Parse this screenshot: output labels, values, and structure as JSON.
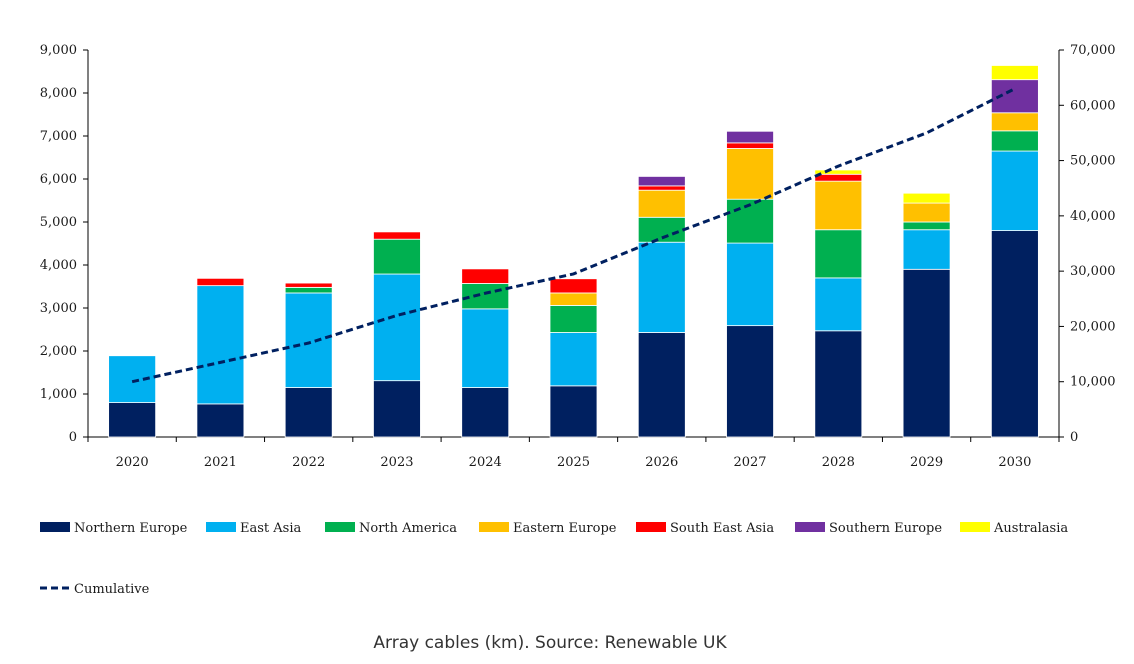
{
  "chart_data": {
    "type": "bar",
    "stacked": true,
    "categories": [
      "2020",
      "2021",
      "2022",
      "2023",
      "2024",
      "2025",
      "2026",
      "2027",
      "2028",
      "2029",
      "2030"
    ],
    "series": [
      {
        "name": "Northern Europe",
        "color": "#002060",
        "values": [
          800,
          770,
          1150,
          1310,
          1150,
          1190,
          2430,
          2590,
          2470,
          3900,
          4800
        ]
      },
      {
        "name": "East Asia",
        "color": "#00B0F0",
        "values": [
          1090,
          2750,
          2200,
          2480,
          1830,
          1240,
          2100,
          1920,
          1230,
          920,
          1850
        ]
      },
      {
        "name": "North America",
        "color": "#00B050",
        "values": [
          0,
          0,
          130,
          810,
          590,
          630,
          580,
          1020,
          1120,
          180,
          470
        ]
      },
      {
        "name": "Eastern Europe",
        "color": "#FFC000",
        "values": [
          0,
          0,
          0,
          0,
          0,
          290,
          630,
          1180,
          1130,
          440,
          420
        ]
      },
      {
        "name": "South East Asia",
        "color": "#FF0000",
        "values": [
          0,
          170,
          100,
          170,
          340,
          330,
          100,
          130,
          160,
          0,
          0
        ]
      },
      {
        "name": "Southern Europe",
        "color": "#7030A0",
        "values": [
          0,
          0,
          0,
          0,
          0,
          0,
          220,
          270,
          0,
          0,
          770
        ]
      },
      {
        "name": "Australasia",
        "color": "#FFFF00",
        "values": [
          0,
          0,
          0,
          0,
          0,
          0,
          0,
          0,
          100,
          230,
          330
        ]
      }
    ],
    "line_series": {
      "name": "Cumulative",
      "color": "#002060",
      "axis": "right",
      "style": "dashed",
      "values": [
        10000,
        13500,
        17000,
        22000,
        26000,
        29500,
        36000,
        42000,
        49000,
        55000,
        63000
      ]
    },
    "y_left": {
      "min": 0,
      "max": 9000,
      "ticks": [
        "0",
        "1,000",
        "2,000",
        "3,000",
        "4,000",
        "5,000",
        "6,000",
        "7,000",
        "8,000",
        "9,000"
      ]
    },
    "y_right": {
      "min": 0,
      "max": 70000,
      "ticks": [
        "0",
        "10,000",
        "20,000",
        "30,000",
        "40,000",
        "50,000",
        "60,000",
        "70,000"
      ]
    },
    "grid": false,
    "legend_position": "bottom"
  },
  "caption": "Array cables (km). Source: Renewable UK"
}
